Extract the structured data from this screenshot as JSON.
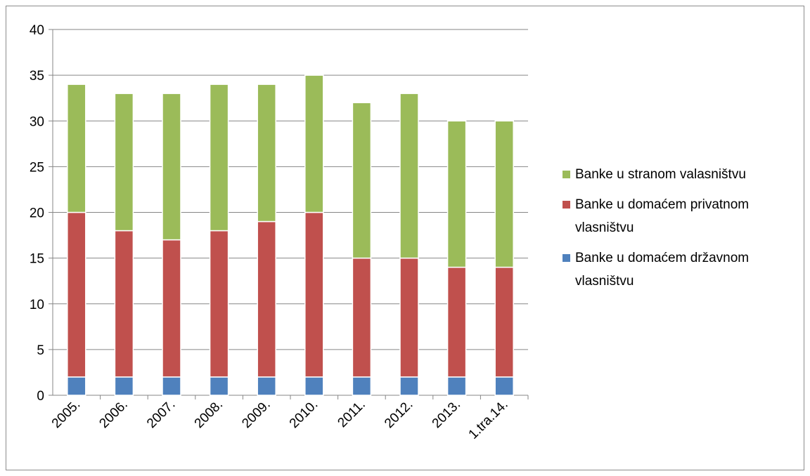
{
  "chart_data": {
    "type": "bar",
    "stacked": true,
    "categories": [
      "2005.",
      "2006.",
      "2007.",
      "2008.",
      "2009.",
      "2010.",
      "2011.",
      "2012.",
      "2013.",
      "1.tra.14."
    ],
    "series": [
      {
        "name": "Banke u domaćem državnom vlasništvu",
        "color": "#4f81bd",
        "values": [
          2,
          2,
          2,
          2,
          2,
          2,
          2,
          2,
          2,
          2
        ]
      },
      {
        "name": "Banke u domaćem privatnom vlasništvu",
        "color": "#c0504d",
        "values": [
          18,
          16,
          15,
          16,
          17,
          18,
          13,
          13,
          12,
          12
        ]
      },
      {
        "name": "Banke u stranom valasništvu",
        "color": "#9bbb59",
        "values": [
          14,
          15,
          16,
          16,
          15,
          15,
          17,
          18,
          16,
          16
        ]
      }
    ],
    "yticks": [
      0,
      5,
      10,
      15,
      20,
      25,
      30,
      35,
      40
    ],
    "ylim": [
      0,
      40
    ],
    "grid": true,
    "legend_position": "right",
    "legend_order": [
      "Banke u stranom valasništvu",
      "Banke u domaćem privatnom vlasništvu",
      "Banke u domaćem državnom vlasništvu"
    ]
  }
}
